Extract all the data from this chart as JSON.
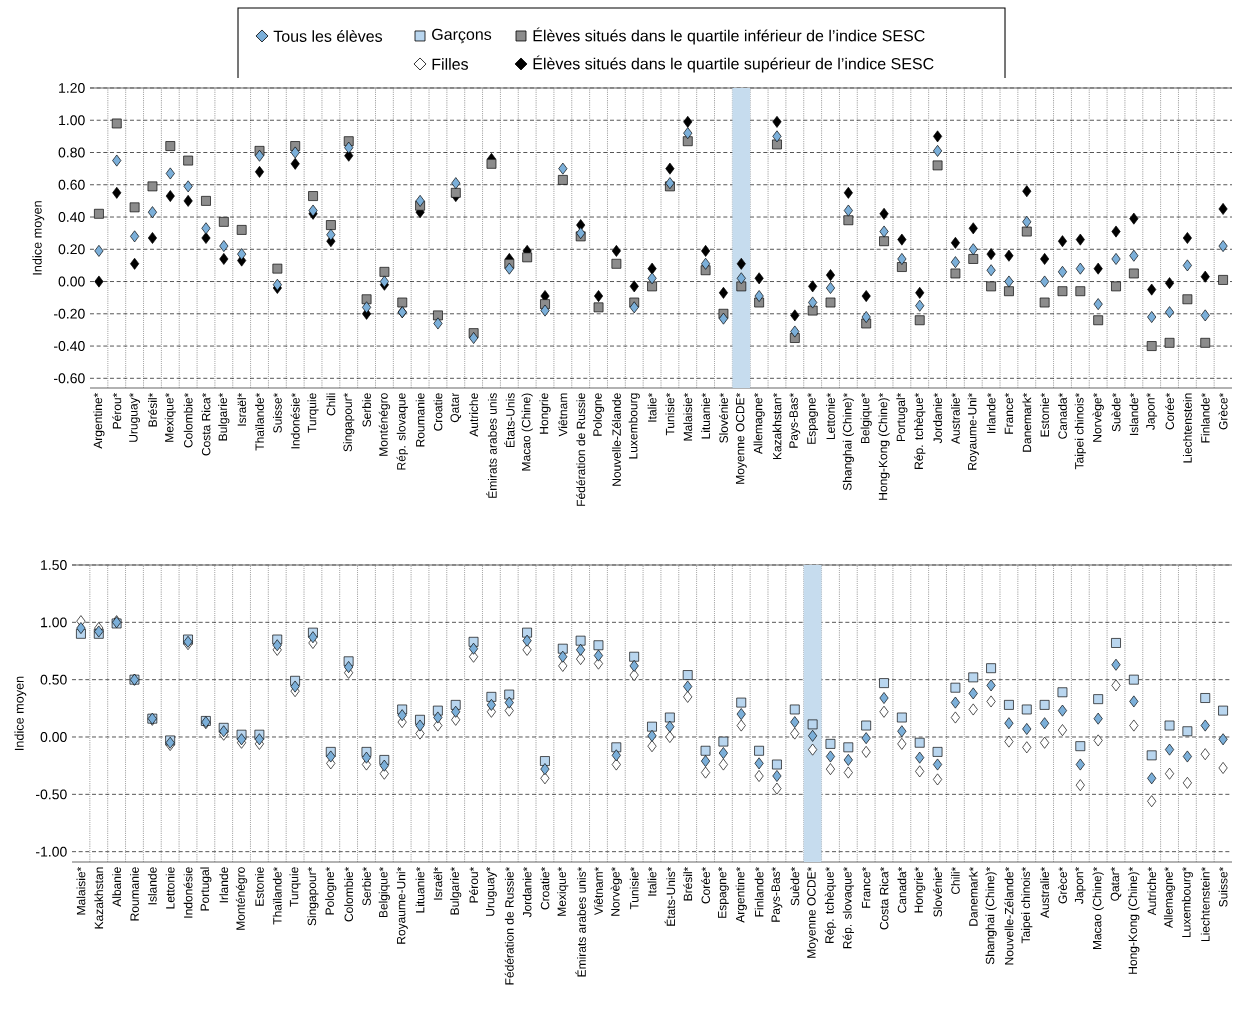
{
  "chart_data": [
    {
      "type": "scatter",
      "ylabel": "Indice moyen",
      "grid": true,
      "legend": "top",
      "categories": [
        "Argentine*",
        "Pérou*",
        "Uruguay*",
        "Brésil*",
        "Mexique*",
        "Colombie*",
        "Costa Rica*",
        "Bulgarie*",
        "Israël*",
        "Thaïlande*",
        "Suisse*",
        "Indonésie*",
        "Turquie",
        "Chili",
        "Singapour*",
        "Serbie",
        "Monténégro",
        "Rép. slovaque",
        "Roumanie",
        "Croatie",
        "Qatar",
        "Autriche",
        "Émirats arabes unis",
        "États-Unis",
        "Macao (Chine)",
        "Hongrie",
        "Viêtnam",
        "Fédération de Russie",
        "Pologne",
        "Nouvelle-Zélande",
        "Luxembourg",
        "Italie*",
        "Tunisie*",
        "Malaisie*",
        "Lituanie*",
        "Slovénie*",
        "Moyenne OCDE*",
        "Allemagne*",
        "Kazakhstan*",
        "Pays-Bas*",
        "Espagne*",
        "Lettonie*",
        "Shanghai (Chine)*",
        "Belgique*",
        "Hong-Kong (Chine)*",
        "Portugal*",
        "Rép. tchèque*",
        "Jordanie*",
        "Australie*",
        "Royaume-Uni*",
        "Irlande*",
        "France*",
        "Danemark*",
        "Estonie*",
        "Canada*",
        "Taipei chinois*",
        "Norvège*",
        "Suède*",
        "Islande*",
        "Japon*",
        "Corée*",
        "Liechtenstein",
        "Finlande*",
        "Grèce*"
      ],
      "ylim": [
        -0.66,
        1.2
      ],
      "yticks": [
        {
          "value": 1.2,
          "label": "1.20"
        },
        {
          "value": 1.0,
          "label": "1.00"
        },
        {
          "value": 0.8,
          "label": "0.80"
        },
        {
          "value": 0.6,
          "label": "0.60"
        },
        {
          "value": 0.4,
          "label": "0.40"
        },
        {
          "value": 0.2,
          "label": "0.20"
        },
        {
          "value": 0,
          "label": "0.00"
        },
        {
          "value": -0.2,
          "label": "-0.20"
        },
        {
          "value": -0.4,
          "label": "-0.40"
        },
        {
          "value": -0.6,
          "label": "-0.60"
        }
      ],
      "bands": [
        {
          "axis": "x",
          "from": "Moyenne OCDE*",
          "to": "Moyenne OCDE*",
          "color": "#c6dcee"
        }
      ],
      "series": [
        {
          "name": "Tous les élèves",
          "color": "#7bafd9",
          "marker": "diamond",
          "values": [
            0.19,
            0.75,
            0.28,
            0.43,
            0.67,
            0.59,
            0.33,
            0.22,
            0.17,
            0.78,
            -0.02,
            0.8,
            0.44,
            0.29,
            0.83,
            -0.16,
            0.0,
            -0.19,
            0.5,
            -0.26,
            0.61,
            -0.35,
            null,
            0.08,
            null,
            -0.18,
            0.7,
            0.3,
            null,
            null,
            -0.16,
            0.02,
            0.61,
            0.92,
            0.11,
            -0.23,
            0.02,
            -0.09,
            0.9,
            -0.31,
            -0.13,
            -0.04,
            0.44,
            -0.22,
            0.31,
            0.14,
            -0.15,
            0.81,
            0.12,
            0.2,
            0.07,
            0.0,
            0.37,
            0.0,
            0.06,
            0.08,
            -0.14,
            0.14,
            0.16,
            -0.22,
            -0.19,
            0.1,
            -0.21,
            0.22
          ]
        },
        {
          "name": "Élèves situés dans le quartile inférieur de l’indice SESC",
          "color": "#8c8c8c",
          "marker": "square",
          "values": [
            0.42,
            0.98,
            0.46,
            0.59,
            0.84,
            0.75,
            0.5,
            0.37,
            0.32,
            0.81,
            0.08,
            0.84,
            0.53,
            0.35,
            0.87,
            -0.11,
            0.06,
            -0.13,
            0.47,
            -0.21,
            0.55,
            -0.32,
            0.73,
            0.11,
            0.15,
            -0.14,
            0.63,
            0.28,
            -0.16,
            0.11,
            -0.13,
            -0.03,
            0.59,
            0.87,
            0.07,
            -0.2,
            -0.03,
            -0.13,
            0.85,
            -0.35,
            -0.18,
            -0.13,
            0.38,
            -0.26,
            0.25,
            0.09,
            -0.24,
            0.72,
            0.05,
            0.14,
            -0.03,
            -0.06,
            0.31,
            -0.13,
            -0.06,
            -0.06,
            -0.24,
            -0.03,
            0.05,
            -0.4,
            -0.38,
            -0.11,
            -0.38,
            0.01
          ]
        },
        {
          "name": "Élèves situés dans le quartile supérieur de l’indice SESC",
          "color": "#000000",
          "marker": "diamond",
          "values": [
            0.0,
            0.55,
            0.11,
            0.27,
            0.53,
            0.5,
            0.27,
            0.14,
            0.13,
            0.68,
            -0.04,
            0.73,
            0.42,
            0.25,
            0.78,
            -0.2,
            -0.02,
            -0.19,
            0.43,
            null,
            0.53,
            null,
            0.76,
            0.14,
            0.19,
            -0.09,
            null,
            0.35,
            -0.09,
            0.19,
            -0.03,
            0.08,
            0.7,
            0.99,
            0.19,
            -0.07,
            0.11,
            0.02,
            0.99,
            -0.21,
            -0.03,
            0.04,
            0.55,
            -0.09,
            0.42,
            0.26,
            -0.07,
            0.9,
            0.24,
            0.33,
            0.17,
            0.16,
            0.56,
            0.14,
            0.25,
            0.26,
            0.08,
            0.31,
            0.39,
            -0.05,
            -0.01,
            0.27,
            0.03,
            0.45
          ]
        }
      ]
    },
    {
      "type": "scatter",
      "ylabel": "Indice moyen",
      "grid": true,
      "legend": "top",
      "categories": [
        "Malaisie*",
        "Kazakhstan",
        "Albanie",
        "Roumanie",
        "Islande",
        "Lettonie",
        "Indonésie",
        "Portugal",
        "Irlande",
        "Monténégro",
        "Estonie",
        "Thaïlande*",
        "Turquie",
        "Singapour*",
        "Pologne*",
        "Colombie*",
        "Serbie*",
        "Belgique*",
        "Royaume-Uni*",
        "Lituanie*",
        "Israël*",
        "Bulgarie*",
        "Pérou*",
        "Uruguay*",
        "Fédération de Russie*",
        "Jordanie*",
        "Croatie*",
        "Mexique*",
        "Émirats arabes unis*",
        "Viêtnam*",
        "Norvège*",
        "Tunisie*",
        "Italie*",
        "États-Unis*",
        "Brésil*",
        "Corée*",
        "Espagne*",
        "Argentine*",
        "Finlande*",
        "Pays-Bas*",
        "Suède*",
        "Moyenne OCDE*",
        "Rép. tchèque*",
        "Rép. slovaque*",
        "France*",
        "Costa Rica*",
        "Canada*",
        "Hongrie*",
        "Slovénie*",
        "Chili*",
        "Danemark*",
        "Shanghai (Chine)*",
        "Nouvelle-Zélande*",
        "Taipei chinois*",
        "Australie*",
        "Grèce*",
        "Japon*",
        "Macao (Chine)*",
        "Qatar*",
        "Hong-Kong (Chine)*",
        "Autriche*",
        "Allemagne*",
        "Luxembourg*",
        "Liechtenstein*",
        "Suisse*"
      ],
      "ylim": [
        -1.09,
        1.5
      ],
      "yticks": [
        {
          "value": 1.5,
          "label": "1.50"
        },
        {
          "value": 1.0,
          "label": "1.00"
        },
        {
          "value": 0.5,
          "label": "0.50"
        },
        {
          "value": 0,
          "label": "0.00"
        },
        {
          "value": -0.5,
          "label": "-0.50"
        },
        {
          "value": -1.0,
          "label": "-1.00"
        }
      ],
      "bands": [
        {
          "axis": "x",
          "from": "Moyenne OCDE*",
          "to": "Moyenne OCDE*",
          "color": "#c6dcee"
        }
      ],
      "series": [
        {
          "color": "#7bafd9",
          "marker": "diamond",
          "values": [
            0.95,
            0.92,
            1.0,
            0.5,
            0.16,
            -0.05,
            0.83,
            0.13,
            0.05,
            -0.02,
            -0.02,
            0.8,
            0.44,
            0.87,
            -0.17,
            0.61,
            -0.18,
            -0.25,
            0.19,
            0.1,
            0.17,
            0.22,
            0.77,
            0.28,
            0.3,
            0.84,
            -0.28,
            0.7,
            0.76,
            0.71,
            -0.16,
            0.62,
            0.01,
            0.09,
            0.44,
            -0.21,
            -0.14,
            0.2,
            -0.23,
            -0.34,
            0.13,
            0.01,
            -0.17,
            -0.2,
            -0.01,
            0.34,
            0.05,
            -0.18,
            -0.24,
            0.3,
            0.38,
            0.45,
            0.12,
            0.07,
            0.12,
            0.23,
            -0.24,
            0.16,
            0.63,
            0.31,
            -0.36,
            -0.11,
            -0.17,
            0.1,
            -0.02
          ]
        },
        {
          "name": "Garçons",
          "color": "#b9d6ef",
          "marker": "square",
          "values": [
            0.9,
            0.9,
            0.99,
            0.5,
            0.16,
            -0.03,
            0.85,
            0.14,
            0.08,
            0.02,
            0.02,
            0.85,
            0.49,
            0.91,
            -0.13,
            0.66,
            -0.13,
            -0.2,
            0.24,
            0.15,
            0.23,
            0.28,
            0.83,
            0.35,
            0.37,
            0.91,
            -0.21,
            0.77,
            0.84,
            0.8,
            -0.09,
            0.7,
            0.09,
            0.17,
            0.54,
            -0.12,
            -0.04,
            0.3,
            -0.12,
            -0.24,
            0.24,
            0.11,
            -0.06,
            -0.09,
            0.1,
            0.47,
            0.17,
            -0.05,
            -0.13,
            0.43,
            0.52,
            0.6,
            0.28,
            0.24,
            0.28,
            0.39,
            -0.08,
            0.33,
            0.82,
            0.5,
            -0.16,
            0.1,
            0.05,
            0.34,
            0.23
          ]
        },
        {
          "name": "Filles",
          "color": "#ffffff",
          "marker": "diamond",
          "values": [
            1.01,
            0.95,
            1.01,
            0.5,
            0.15,
            -0.07,
            0.81,
            0.12,
            0.02,
            -0.05,
            -0.06,
            0.76,
            0.4,
            0.82,
            -0.23,
            0.56,
            -0.24,
            -0.32,
            0.13,
            0.03,
            0.1,
            0.15,
            0.7,
            0.22,
            0.23,
            0.76,
            -0.36,
            0.62,
            0.68,
            0.64,
            -0.24,
            0.54,
            -0.08,
            0.0,
            0.35,
            -0.31,
            -0.24,
            0.1,
            -0.34,
            -0.45,
            0.03,
            -0.11,
            -0.28,
            -0.31,
            -0.13,
            0.22,
            -0.06,
            -0.3,
            -0.37,
            0.17,
            0.24,
            0.31,
            -0.04,
            -0.09,
            -0.05,
            0.06,
            -0.42,
            -0.03,
            0.45,
            0.1,
            -0.56,
            -0.32,
            -0.4,
            -0.15,
            -0.27
          ]
        }
      ]
    }
  ]
}
